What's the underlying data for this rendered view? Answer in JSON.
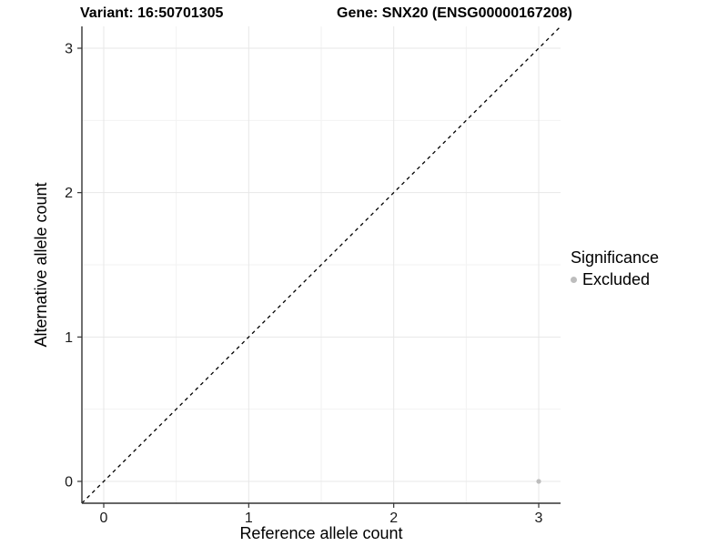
{
  "titles": {
    "variant": "Variant: 16:50701305",
    "gene": "Gene: SNX20 (ENSG00000167208)"
  },
  "chart_data": {
    "type": "scatter",
    "title": "Variant: 16:50701305 | Gene: SNX20 (ENSG00000167208)",
    "xlabel": "Reference allele count",
    "ylabel": "Alternative allele count",
    "xlim": [
      -0.15,
      3.15
    ],
    "ylim": [
      -0.15,
      3.15
    ],
    "x_ticks": [
      0,
      1,
      2,
      3
    ],
    "y_ticks": [
      0,
      1,
      2,
      3
    ],
    "grid": "major-and-minor",
    "series": [
      {
        "name": "Excluded",
        "color": "#bdbdbd",
        "points": [
          {
            "x": 3,
            "y": 0
          }
        ]
      }
    ],
    "reference_line": {
      "type": "identity",
      "slope": 1,
      "intercept": 0,
      "style": "dashed",
      "color": "#000000"
    },
    "legend": {
      "title": "Significance",
      "position": "right",
      "entries": [
        {
          "label": "Excluded",
          "color": "#bdbdbd"
        }
      ]
    }
  },
  "colors": {
    "background": "#ffffff",
    "grid_major": "#e7e7e7",
    "grid_minor": "#f2f2f2",
    "axis_line": "#333333",
    "tick_mark": "#333333",
    "tick_label": "#1a1a1a",
    "text": "#000000",
    "point": "#bdbdbd",
    "dashed_line": "#000000"
  }
}
